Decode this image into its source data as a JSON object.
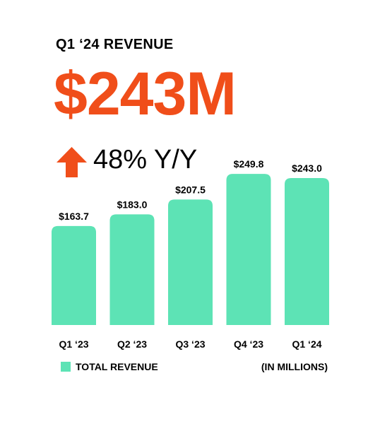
{
  "heading": "Q1 ‘24 REVENUE",
  "headline_value": "$243M",
  "growth_text": "48% Y/Y",
  "colors": {
    "accent": "#F04E1A",
    "bar": "#5DE3B5",
    "text": "#000000"
  },
  "icons": {
    "growth": "arrow-up-icon"
  },
  "units_note": "(IN MILLIONS)",
  "chart_data": {
    "type": "bar",
    "categories": [
      "Q1 ‘23",
      "Q2 ‘23",
      "Q3 ‘23",
      "Q4 ‘23",
      "Q1 ‘24"
    ],
    "values": [
      163.7,
      183.0,
      207.5,
      249.8,
      243.0
    ],
    "value_labels": [
      "$163.7",
      "$183.0",
      "$207.5",
      "$249.8",
      "$243.0"
    ],
    "series": [
      {
        "name": "TOTAL REVENUE",
        "values": [
          163.7,
          183.0,
          207.5,
          249.8,
          243.0
        ]
      }
    ],
    "ylim": [
      0,
      250
    ],
    "grid": false,
    "legend": "bottom-left"
  }
}
